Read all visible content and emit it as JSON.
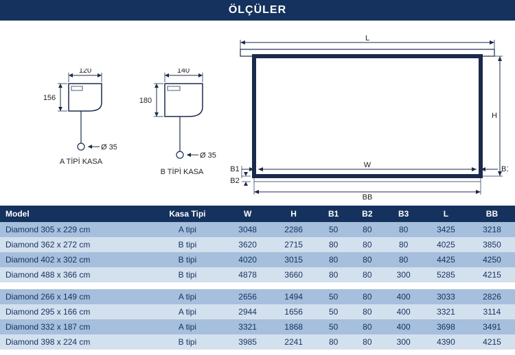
{
  "title": "ÖLÇÜLER",
  "diagrams": {
    "caseA": {
      "caption": "A TİPİ KASA",
      "width_label": "120",
      "height_label": "156",
      "diameter_label": "Ø 35",
      "stroke": "#1a2a4a",
      "fill": "#ffffff"
    },
    "caseB": {
      "caption": "B TİPİ KASA",
      "width_label": "140",
      "height_label": "180",
      "diameter_label": "Ø 35",
      "stroke": "#1a2a4a",
      "fill": "#ffffff"
    },
    "screen": {
      "L": "L",
      "W": "W",
      "H": "H",
      "BB": "BB",
      "B1": "B1",
      "B2": "B2",
      "stroke": "#1a2a4a"
    }
  },
  "table": {
    "columns": [
      "Model",
      "Kasa Tipi",
      "W",
      "H",
      "B1",
      "B2",
      "B3",
      "L",
      "BB"
    ],
    "groups": [
      {
        "rows": [
          [
            "Diamond 305 x 229 cm",
            "A tipi",
            "3048",
            "2286",
            "50",
            "80",
            "80",
            "3425",
            "3218"
          ],
          [
            "Diamond 362 x 272 cm",
            "B tipi",
            "3620",
            "2715",
            "80",
            "80",
            "80",
            "4025",
            "3850"
          ],
          [
            "Diamond 402 x 302 cm",
            "B tipi",
            "4020",
            "3015",
            "80",
            "80",
            "80",
            "4425",
            "4250"
          ],
          [
            "Diamond 488 x 366 cm",
            "B tipi",
            "4878",
            "3660",
            "80",
            "80",
            "300",
            "5285",
            "4215"
          ]
        ]
      },
      {
        "rows": [
          [
            "Diamond 266 x 149 cm",
            "A tipi",
            "2656",
            "1494",
            "50",
            "80",
            "400",
            "3033",
            "2826"
          ],
          [
            "Diamond 295 x 166 cm",
            "A tipi",
            "2944",
            "1656",
            "50",
            "80",
            "400",
            "3321",
            "3114"
          ],
          [
            "Diamond 332 x 187 cm",
            "A tipi",
            "3321",
            "1868",
            "50",
            "80",
            "400",
            "3698",
            "3491"
          ],
          [
            "Diamond 398 x 224 cm",
            "B tipi",
            "3985",
            "2241",
            "80",
            "80",
            "300",
            "4390",
            "4215"
          ]
        ]
      }
    ]
  },
  "colors": {
    "header_bg": "#15325e",
    "row_dark": "#a5bfdc",
    "row_light": "#d3e0ee"
  }
}
